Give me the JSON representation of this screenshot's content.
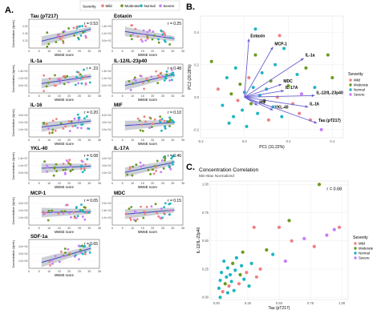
{
  "figure": {
    "panel_labels": [
      "A.",
      "B.",
      "C."
    ],
    "colors": {
      "Mild": "#f08080",
      "Moderate": "#6a9a1f",
      "Normal": "#1fb5c2",
      "Severe": "#c77cff"
    }
  },
  "panel_a": {
    "legend_title": "Severity",
    "legend_items": [
      "Mild",
      "Moderate",
      "Normal",
      "Severe"
    ],
    "xlabel": "MMSE score",
    "ylabel": "Concentration (fg/mL)",
    "xticks": [
      "0",
      "5",
      "10",
      "15",
      "20",
      "25",
      "30",
      "35"
    ]
  },
  "chart_data": [
    {
      "type": "scatter",
      "panel": "A",
      "xlabel": "MMSE score",
      "ylabel": "Concentration (fg/mL)",
      "xlim": [
        0,
        35
      ],
      "subplots": [
        {
          "title": "Tau (pT217)",
          "r": "r = 0.53",
          "slope": -0.6,
          "ytick_labels": [
            "0.60",
            "0.40",
            "0.20"
          ]
        },
        {
          "title": "Eotaxin",
          "r": "r = 0.25",
          "slope": 0.35,
          "ytick_labels": [
            "1.5e+03",
            "1.0e+03",
            "5.0e+02"
          ]
        },
        {
          "title": "IL-1a",
          "r": "r = .23",
          "slope": -0.35,
          "ytick_labels": [
            "1.5e+02",
            "1.0e+02",
            "5.0e+01"
          ]
        },
        {
          "title": "IL-12/IL-23p40",
          "r": "r = 0.48",
          "slope": -0.55,
          "ytick_labels": [
            "1.5e+04",
            "1.0e+04",
            "5.0e+03"
          ]
        },
        {
          "title": "IL-16",
          "r": "r = 0.20",
          "slope": -0.3,
          "ytick_labels": [
            "3.0e+04",
            "2.0e+04",
            "1.0e+04"
          ]
        },
        {
          "title": "MIF",
          "r": "r = 0.10",
          "slope": -0.15,
          "ytick_labels": [
            "6.0e+04",
            "4.0e+04",
            "2.0e+04"
          ]
        },
        {
          "title": "YKL-40",
          "r": "r = 0.08",
          "slope": -0.1,
          "ytick_labels": [
            "1.5e+07",
            "1.0e+07",
            "5.0e+06"
          ]
        },
        {
          "title": "IL-17A",
          "r": "r = 0.46",
          "slope": -0.5,
          "ytick_labels": [
            "4.0e+02",
            "3.0e+02",
            "2.0e+02"
          ]
        },
        {
          "title": "MCP-1",
          "r": "r = 0.05",
          "slope": -0.05,
          "ytick_labels": [
            "3.0e+03",
            "2.0e+03",
            "1.0e+03"
          ]
        },
        {
          "title": "MDC",
          "r": "r = 0.15",
          "slope": -0.2,
          "ytick_labels": [
            "2.0e+03",
            "1.5e+03",
            "1.0e+03"
          ]
        },
        {
          "title": "SDF-1a",
          "r": "r = 0.65",
          "slope": -0.7,
          "ytick_labels": [
            "4.0e+04",
            "3.0e+04",
            "2.0e+04"
          ]
        }
      ]
    },
    {
      "type": "scatter",
      "panel": "B",
      "xlabel": "PC1 (31.22%)",
      "ylabel": "PC2 (20.28%)",
      "xlim": [
        -0.2,
        0.45
      ],
      "ylim": [
        -0.25,
        0.5
      ],
      "xticks": [
        -0.2,
        0.0,
        0.2,
        0.4
      ],
      "xtick_labels": [
        "-0.2",
        "0.0",
        "0.2",
        "0.4"
      ],
      "yticks": [
        -0.2,
        0.0,
        0.2,
        0.4
      ],
      "ytick_labels": [
        "-0.2",
        "0.0",
        "0.2",
        "0.4"
      ],
      "legend_title": "Severity",
      "legend_items": [
        "Mild",
        "Moderate",
        "Normal",
        "Severe"
      ],
      "vectors": [
        {
          "label": "Eotaxin",
          "x": 0.02,
          "y": 0.36
        },
        {
          "label": "MCP-1",
          "x": 0.13,
          "y": 0.31
        },
        {
          "label": "IL-1a",
          "x": 0.27,
          "y": 0.24
        },
        {
          "label": "MDC",
          "x": 0.17,
          "y": 0.08
        },
        {
          "label": "IL-17A",
          "x": 0.18,
          "y": 0.04
        },
        {
          "label": "IL-12/IL-23p40",
          "x": 0.32,
          "y": 0.01
        },
        {
          "label": "IL-16",
          "x": 0.29,
          "y": -0.06
        },
        {
          "label": "YKL-40",
          "x": 0.13,
          "y": -0.08
        },
        {
          "label": "MIF",
          "x": 0.06,
          "y": -0.05
        },
        {
          "label": "Tau (pT217)",
          "x": 0.33,
          "y": -0.16
        }
      ],
      "points": [
        {
          "x": -0.15,
          "y": 0.22,
          "g": "Moderate"
        },
        {
          "x": -0.12,
          "y": 0.05,
          "g": "Mild"
        },
        {
          "x": -0.1,
          "y": -0.05,
          "g": "Normal"
        },
        {
          "x": -0.08,
          "y": 0.12,
          "g": "Normal"
        },
        {
          "x": -0.06,
          "y": 0.02,
          "g": "Moderate"
        },
        {
          "x": -0.05,
          "y": -0.12,
          "g": "Normal"
        },
        {
          "x": -0.04,
          "y": 0.18,
          "g": "Normal"
        },
        {
          "x": -0.03,
          "y": -0.02,
          "g": "Mild"
        },
        {
          "x": -0.02,
          "y": 0.08,
          "g": "Moderate"
        },
        {
          "x": -0.01,
          "y": -0.08,
          "g": "Normal"
        },
        {
          "x": 0.0,
          "y": 0.03,
          "g": "Normal"
        },
        {
          "x": 0.01,
          "y": -0.18,
          "g": "Normal"
        },
        {
          "x": 0.02,
          "y": 0.12,
          "g": "Mild"
        },
        {
          "x": 0.03,
          "y": -0.04,
          "g": "Moderate"
        },
        {
          "x": 0.04,
          "y": 0.06,
          "g": "Normal"
        },
        {
          "x": 0.05,
          "y": 0.26,
          "g": "Moderate"
        },
        {
          "x": 0.06,
          "y": -0.1,
          "g": "Normal"
        },
        {
          "x": 0.07,
          "y": 0.01,
          "g": "Normal"
        },
        {
          "x": 0.08,
          "y": 0.15,
          "g": "Normal"
        },
        {
          "x": 0.09,
          "y": -0.02,
          "g": "Moderate"
        },
        {
          "x": 0.1,
          "y": 0.05,
          "g": "Normal"
        },
        {
          "x": 0.11,
          "y": -0.14,
          "g": "Mild"
        },
        {
          "x": 0.12,
          "y": 0.1,
          "g": "Moderate"
        },
        {
          "x": 0.13,
          "y": -0.06,
          "g": "Normal"
        },
        {
          "x": 0.14,
          "y": 0.2,
          "g": "Normal"
        },
        {
          "x": 0.15,
          "y": 0.0,
          "g": "Mild"
        },
        {
          "x": 0.17,
          "y": -0.12,
          "g": "Normal"
        },
        {
          "x": 0.18,
          "y": 0.3,
          "g": "Normal"
        },
        {
          "x": 0.2,
          "y": 0.07,
          "g": "Moderate"
        },
        {
          "x": 0.22,
          "y": -0.04,
          "g": "Mild"
        },
        {
          "x": 0.24,
          "y": 0.14,
          "g": "Normal"
        },
        {
          "x": 0.25,
          "y": -0.1,
          "g": "Mild"
        },
        {
          "x": 0.26,
          "y": 0.02,
          "g": "Severe"
        },
        {
          "x": 0.28,
          "y": 0.18,
          "g": "Moderate"
        },
        {
          "x": 0.3,
          "y": -0.14,
          "g": "Mild"
        },
        {
          "x": 0.32,
          "y": 0.06,
          "g": "Normal"
        },
        {
          "x": 0.35,
          "y": -0.2,
          "g": "Severe"
        },
        {
          "x": 0.38,
          "y": 0.26,
          "g": "Moderate"
        },
        {
          "x": 0.4,
          "y": 0.12,
          "g": "Moderate"
        },
        {
          "x": 0.05,
          "y": 0.42,
          "g": "Normal"
        },
        {
          "x": -0.07,
          "y": -0.16,
          "g": "Normal"
        },
        {
          "x": 0.16,
          "y": 0.38,
          "g": "Mild"
        }
      ]
    },
    {
      "type": "scatter",
      "panel": "C",
      "title": "Concentration Correlation",
      "subtitle": "Min-Max Normalized",
      "xlabel": "Tau (pT217)",
      "ylabel": "IL-12/IL-23p40",
      "xlim": [
        -0.05,
        1.05
      ],
      "ylim": [
        -0.02,
        1.03
      ],
      "xticks": [
        0.0,
        0.25,
        0.5,
        0.75,
        1.0
      ],
      "xtick_labels": [
        "0.00",
        "0.25",
        "0.50",
        "0.75",
        "1.00"
      ],
      "yticks": [
        0.0,
        0.25,
        0.5,
        0.75,
        1.0
      ],
      "ytick_labels": [
        "0.00",
        "0.25",
        "0.50",
        "0.75",
        "1.00"
      ],
      "annotation": "r = 0.68",
      "legend_title": "Severity",
      "legend_items": [
        "Mild",
        "Moderate",
        "Normal",
        "Severe"
      ],
      "points": [
        {
          "x": 0.02,
          "y": 0.08,
          "g": "Normal"
        },
        {
          "x": 0.03,
          "y": 0.15,
          "g": "Normal"
        },
        {
          "x": 0.04,
          "y": 0.22,
          "g": "Normal"
        },
        {
          "x": 0.05,
          "y": 0.05,
          "g": "Mild"
        },
        {
          "x": 0.06,
          "y": 0.32,
          "g": "Normal"
        },
        {
          "x": 0.07,
          "y": 0.12,
          "g": "Moderate"
        },
        {
          "x": 0.08,
          "y": 0.18,
          "g": "Normal"
        },
        {
          "x": 0.09,
          "y": 0.26,
          "g": "Normal"
        },
        {
          "x": 0.1,
          "y": 0.1,
          "g": "Mild"
        },
        {
          "x": 0.11,
          "y": 0.2,
          "g": "Normal"
        },
        {
          "x": 0.12,
          "y": 0.14,
          "g": "Normal"
        },
        {
          "x": 0.13,
          "y": 0.3,
          "g": "Moderate"
        },
        {
          "x": 0.14,
          "y": 0.06,
          "g": "Normal"
        },
        {
          "x": 0.15,
          "y": 0.24,
          "g": "Normal"
        },
        {
          "x": 0.16,
          "y": 0.35,
          "g": "Normal"
        },
        {
          "x": 0.18,
          "y": 0.12,
          "g": "Mild"
        },
        {
          "x": 0.19,
          "y": 0.2,
          "g": "Moderate"
        },
        {
          "x": 0.2,
          "y": 0.28,
          "g": "Normal"
        },
        {
          "x": 0.21,
          "y": 0.4,
          "g": "Moderate"
        },
        {
          "x": 0.22,
          "y": 0.16,
          "g": "Normal"
        },
        {
          "x": 0.24,
          "y": 0.22,
          "g": "Mild"
        },
        {
          "x": 0.26,
          "y": 0.1,
          "g": "Normal"
        },
        {
          "x": 0.28,
          "y": 0.3,
          "g": "Normal"
        },
        {
          "x": 0.3,
          "y": 0.62,
          "g": "Mild"
        },
        {
          "x": 0.32,
          "y": 0.18,
          "g": "Mild"
        },
        {
          "x": 0.35,
          "y": 0.25,
          "g": "Mild"
        },
        {
          "x": 0.4,
          "y": 0.42,
          "g": "Moderate"
        },
        {
          "x": 0.45,
          "y": 0.38,
          "g": "Normal"
        },
        {
          "x": 0.5,
          "y": 0.62,
          "g": "Mild"
        },
        {
          "x": 0.55,
          "y": 0.32,
          "g": "Severe"
        },
        {
          "x": 0.58,
          "y": 0.68,
          "g": "Moderate"
        },
        {
          "x": 0.6,
          "y": 0.5,
          "g": "Mild"
        },
        {
          "x": 0.7,
          "y": 0.52,
          "g": "Severe"
        },
        {
          "x": 0.78,
          "y": 0.45,
          "g": "Mild"
        },
        {
          "x": 0.82,
          "y": 1.0,
          "g": "Moderate"
        },
        {
          "x": 0.88,
          "y": 0.55,
          "g": "Severe"
        },
        {
          "x": 0.94,
          "y": 0.6,
          "g": "Severe"
        },
        {
          "x": 0.98,
          "y": 0.62,
          "g": "Mild"
        },
        {
          "x": 0.03,
          "y": 0.0,
          "g": "Normal"
        },
        {
          "x": 0.09,
          "y": 0.04,
          "g": "Normal"
        }
      ]
    }
  ]
}
